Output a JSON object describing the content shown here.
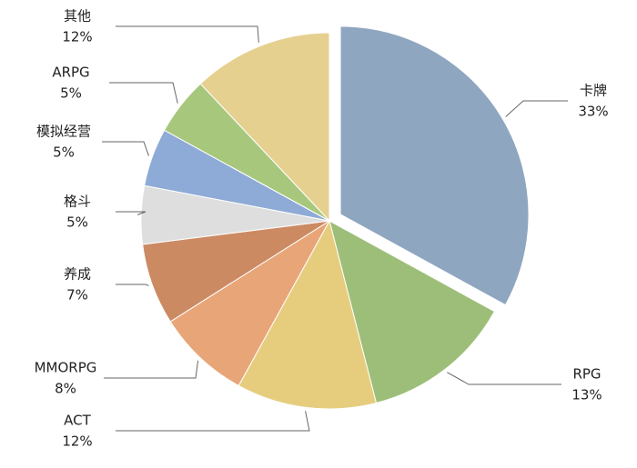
{
  "chart_data": {
    "type": "pie",
    "categories": [
      "卡牌",
      "RPG",
      "ACT",
      "MMORPG",
      "养成",
      "格斗",
      "模拟经营",
      "ARPG",
      "其他"
    ],
    "values": [
      33,
      13,
      12,
      8,
      7,
      5,
      5,
      5,
      12
    ],
    "value_labels": [
      "33%",
      "13%",
      "12%",
      "8%",
      "7%",
      "5%",
      "5%",
      "5%",
      "12%"
    ],
    "colors": [
      "#8fa6c0",
      "#9dbe78",
      "#e6cd7e",
      "#e8a577",
      "#cc8a63",
      "#dedede",
      "#8eaad6",
      "#a7c77d",
      "#e6d08f"
    ],
    "exploded": [
      0
    ]
  }
}
